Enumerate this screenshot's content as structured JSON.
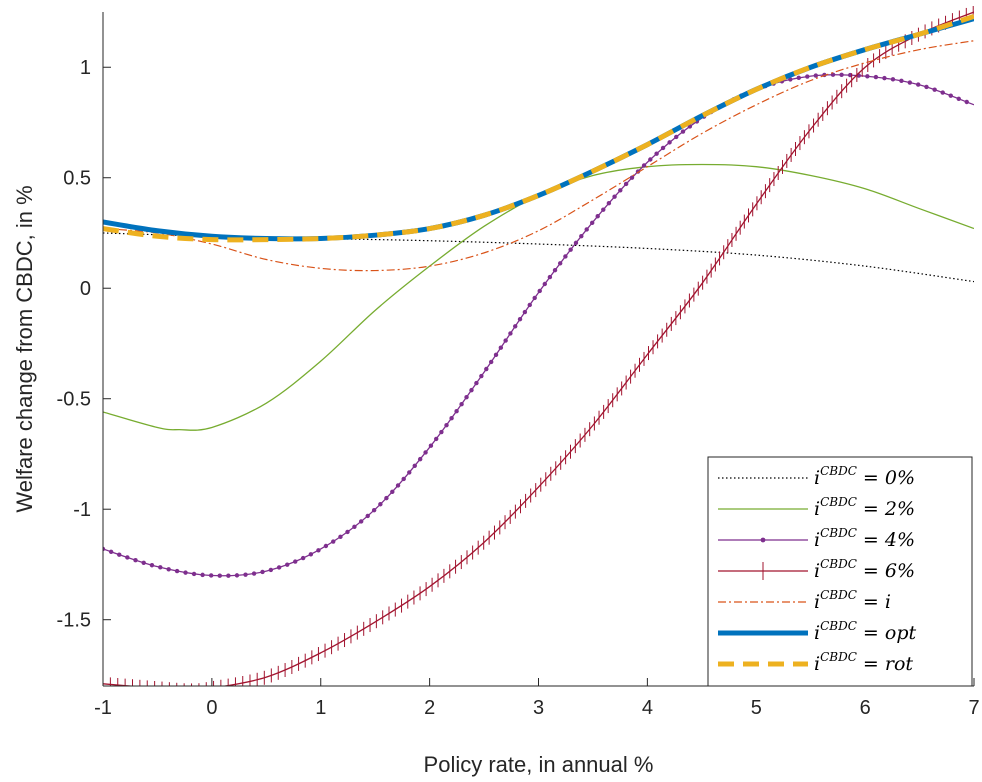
{
  "chart_data": {
    "type": "line",
    "title": "",
    "xlabel": "Policy rate, in annual %",
    "ylabel": "Welfare change from CBDC, in %",
    "xlim": [
      -1,
      7
    ],
    "ylim": [
      -1.8,
      1.25
    ],
    "xticks": [
      "-1",
      "0",
      "1",
      "2",
      "3",
      "4",
      "5",
      "6",
      "7"
    ],
    "yticks": [
      "-1.5",
      "-1",
      "-0.5",
      "0",
      "0.5",
      "1"
    ],
    "grid": false,
    "legend_position": "bottom-right",
    "series": [
      {
        "name": "i^{CBDC} = 0%",
        "legend": {
          "base": "i",
          "sup": "CBDC",
          "rest": " = 0%"
        },
        "color": "#000000",
        "style": "dotted",
        "x": [
          -1,
          0,
          1,
          2,
          3,
          4,
          5,
          6,
          7
        ],
        "y": [
          0.25,
          0.235,
          0.225,
          0.215,
          0.2,
          0.18,
          0.15,
          0.1,
          0.03
        ]
      },
      {
        "name": "i^{CBDC} = 2%",
        "legend": {
          "base": "i",
          "sup": "CBDC",
          "rest": " = 2%"
        },
        "color": "#77ac30",
        "style": "solid",
        "x": [
          -1,
          -0.5,
          -0.3,
          0,
          0.5,
          1,
          1.5,
          2,
          2.5,
          3,
          3.5,
          4,
          4.5,
          5,
          5.5,
          6,
          6.5,
          7
        ],
        "y": [
          -0.56,
          -0.63,
          -0.64,
          -0.63,
          -0.52,
          -0.33,
          -0.1,
          0.1,
          0.28,
          0.42,
          0.51,
          0.55,
          0.56,
          0.55,
          0.51,
          0.45,
          0.36,
          0.27
        ]
      },
      {
        "name": "i^{CBDC} = 4%",
        "legend": {
          "base": "i",
          "sup": "CBDC",
          "rest": " = 4%"
        },
        "color": "#7e2f8e",
        "style": "solid-dot",
        "x": [
          -1,
          -0.5,
          0,
          0.5,
          1,
          1.5,
          2,
          2.5,
          3,
          3.5,
          4,
          4.5,
          5,
          5.5,
          6,
          6.5,
          7
        ],
        "y": [
          -1.18,
          -1.26,
          -1.3,
          -1.28,
          -1.18,
          -1.0,
          -0.72,
          -0.38,
          -0.02,
          0.3,
          0.57,
          0.77,
          0.9,
          0.96,
          0.96,
          0.92,
          0.83
        ]
      },
      {
        "name": "i^{CBDC} = 6%",
        "legend": {
          "base": "i",
          "sup": "CBDC",
          "rest": " = 6%"
        },
        "color": "#a2142f",
        "style": "solid-tick",
        "x": [
          -1,
          -0.5,
          -0.2,
          0,
          0.5,
          1,
          1.5,
          2,
          2.5,
          3,
          3.5,
          4,
          4.5,
          5,
          5.5,
          6,
          6.5,
          7
        ],
        "y": [
          -1.79,
          -1.81,
          -1.82,
          -1.81,
          -1.76,
          -1.65,
          -1.51,
          -1.35,
          -1.15,
          -0.9,
          -0.62,
          -0.3,
          0.02,
          0.38,
          0.72,
          1.0,
          1.15,
          1.25
        ]
      },
      {
        "name": "i^{CBDC} = i",
        "legend": {
          "base": "i",
          "sup": "CBDC",
          "rest": " = i"
        },
        "color": "#d95319",
        "style": "dashdot",
        "x": [
          -1,
          -0.5,
          0,
          0.5,
          1,
          1.5,
          2,
          2.5,
          3,
          3.5,
          4,
          4.5,
          5,
          5.5,
          6,
          6.5,
          7
        ],
        "y": [
          0.27,
          0.25,
          0.2,
          0.13,
          0.09,
          0.08,
          0.1,
          0.16,
          0.26,
          0.4,
          0.55,
          0.7,
          0.83,
          0.94,
          1.02,
          1.08,
          1.12
        ]
      },
      {
        "name": "i^{CBDC} = opt",
        "legend": {
          "base": "i",
          "sup": "CBDC",
          "rest": " = opt"
        },
        "color": "#0072bd",
        "style": "thick",
        "x": [
          -1,
          -0.5,
          0,
          0.5,
          1,
          1.5,
          2,
          2.5,
          3,
          3.5,
          4,
          4.5,
          5,
          5.5,
          6,
          6.5,
          7
        ],
        "y": [
          0.3,
          0.26,
          0.235,
          0.225,
          0.225,
          0.24,
          0.27,
          0.33,
          0.42,
          0.53,
          0.65,
          0.78,
          0.9,
          1.0,
          1.08,
          1.15,
          1.22
        ]
      },
      {
        "name": "i^{CBDC} = rot",
        "legend": {
          "base": "i",
          "sup": "CBDC",
          "rest": " = rot"
        },
        "color": "#edb120",
        "style": "dashed",
        "x": [
          -1,
          -0.5,
          0,
          0.5,
          1,
          1.5,
          2,
          2.5,
          3,
          3.5,
          4,
          4.5,
          5,
          5.5,
          6,
          6.5,
          7
        ],
        "y": [
          0.27,
          0.235,
          0.22,
          0.22,
          0.225,
          0.24,
          0.27,
          0.33,
          0.42,
          0.53,
          0.65,
          0.78,
          0.9,
          1.0,
          1.08,
          1.15,
          1.23
        ]
      }
    ]
  }
}
